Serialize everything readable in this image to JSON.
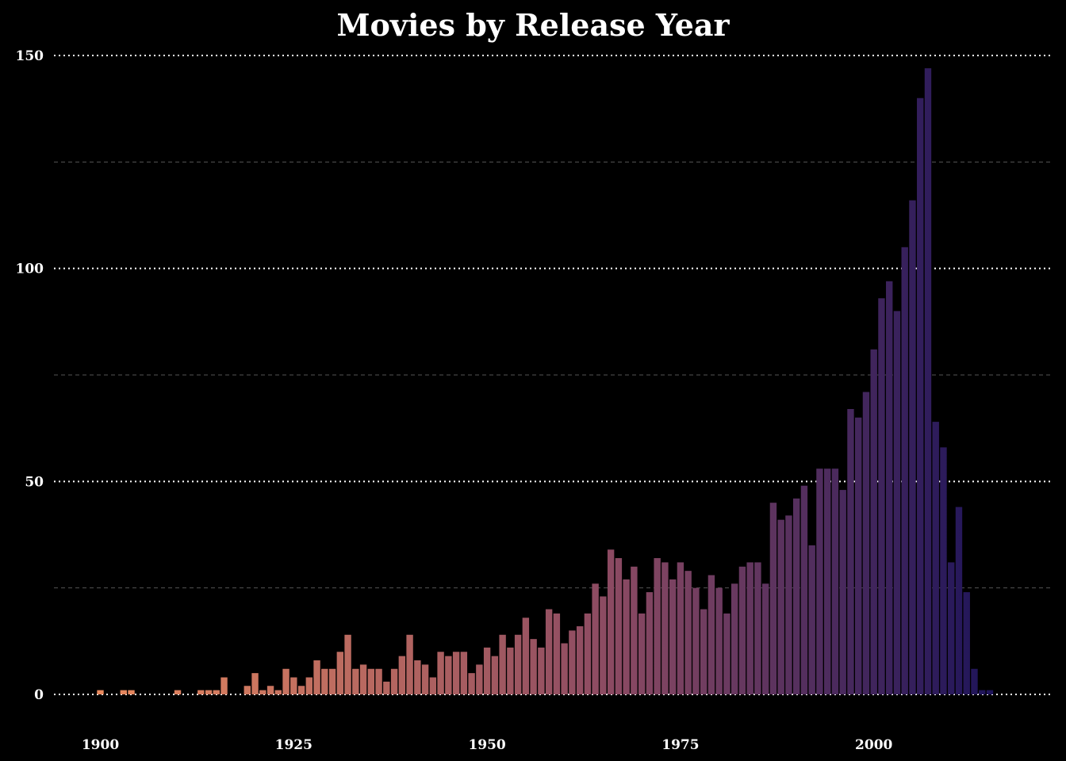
{
  "chart_data": {
    "type": "bar",
    "title": "Movies by Release Year",
    "xlabel": "",
    "ylabel": "",
    "xlim": [
      1894,
      2023
    ],
    "ylim": [
      0,
      150
    ],
    "x_ticks": [
      "1900",
      "1925",
      "1950",
      "1975",
      "2000"
    ],
    "y_ticks": [
      "0",
      "50",
      "100",
      "150"
    ],
    "grid": true,
    "legend": "none",
    "colors": {
      "background": "#000000",
      "text": "#ffffff",
      "major_grid": "#ffffff",
      "minor_grid": "#555555",
      "gradient_start": "#ea8a5e",
      "gradient_mid": "#8b4a62",
      "gradient_end": "#1e145a"
    },
    "x": [
      1900,
      1901,
      1902,
      1903,
      1904,
      1905,
      1906,
      1907,
      1908,
      1909,
      1910,
      1911,
      1912,
      1913,
      1914,
      1915,
      1916,
      1917,
      1918,
      1919,
      1920,
      1921,
      1922,
      1923,
      1924,
      1925,
      1926,
      1927,
      1928,
      1929,
      1930,
      1931,
      1932,
      1933,
      1934,
      1935,
      1936,
      1937,
      1938,
      1939,
      1940,
      1941,
      1942,
      1943,
      1944,
      1945,
      1946,
      1947,
      1948,
      1949,
      1950,
      1951,
      1952,
      1953,
      1954,
      1955,
      1956,
      1957,
      1958,
      1959,
      1960,
      1961,
      1962,
      1963,
      1964,
      1965,
      1966,
      1967,
      1968,
      1969,
      1970,
      1971,
      1972,
      1973,
      1974,
      1975,
      1976,
      1977,
      1978,
      1979,
      1980,
      1981,
      1982,
      1983,
      1984,
      1985,
      1986,
      1987,
      1988,
      1989,
      1990,
      1991,
      1992,
      1993,
      1994,
      1995,
      1996,
      1997,
      1998,
      1999,
      2000,
      2001,
      2002,
      2003,
      2004,
      2005,
      2006,
      2007,
      2008,
      2009,
      2010,
      2011,
      2012,
      2013,
      2014,
      2015
    ],
    "values": [
      1,
      0,
      0,
      1,
      1,
      0,
      0,
      0,
      0,
      0,
      1,
      0,
      0,
      1,
      1,
      1,
      4,
      0,
      0,
      2,
      5,
      1,
      2,
      1,
      6,
      4,
      2,
      4,
      8,
      6,
      6,
      10,
      14,
      6,
      7,
      6,
      6,
      3,
      6,
      9,
      14,
      8,
      7,
      4,
      10,
      9,
      10,
      10,
      5,
      7,
      11,
      9,
      14,
      11,
      14,
      18,
      13,
      11,
      20,
      19,
      12,
      15,
      16,
      19,
      26,
      23,
      34,
      32,
      27,
      30,
      19,
      24,
      32,
      31,
      27,
      31,
      29,
      25,
      20,
      28,
      25,
      19,
      26,
      30,
      31,
      31,
      26,
      45,
      41,
      42,
      46,
      49,
      35,
      53,
      53,
      53,
      48,
      67,
      65,
      71,
      81,
      93,
      97,
      90,
      105,
      116,
      140,
      147,
      64,
      58,
      31,
      44,
      24,
      6,
      1,
      1
    ]
  }
}
